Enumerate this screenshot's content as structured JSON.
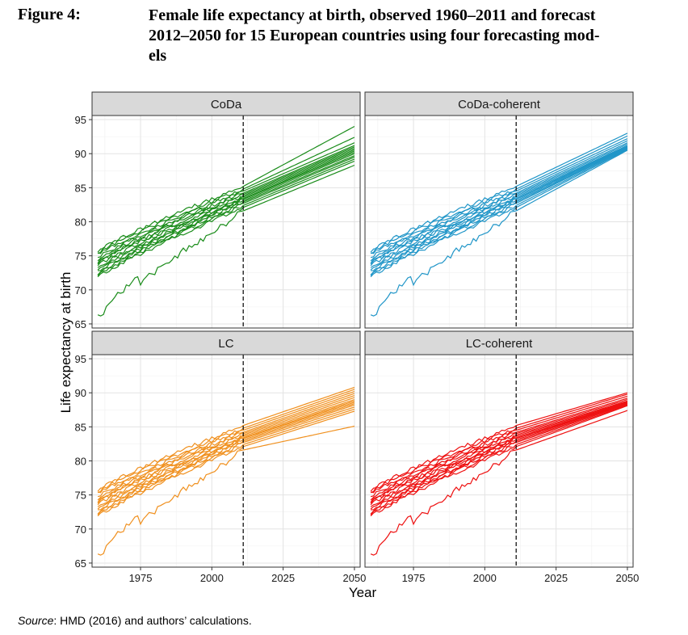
{
  "figure": {
    "label": "Figure 4:",
    "title_lines": [
      "Female life expectancy at birth, observed 1960–2011 and forecast",
      "2012–2050 for 15 European countries using four forecasting mod-",
      "els"
    ]
  },
  "source": {
    "label": "Source",
    "text": ": HMD (2016) and authors’ calculations."
  },
  "chart_data": {
    "type": "line",
    "xlabel": "Year",
    "ylabel": "Life expectancy at birth",
    "xlim": [
      1960,
      2050
    ],
    "ylim": [
      65,
      95
    ],
    "x_ticks": [
      1975,
      2000,
      2025,
      2050
    ],
    "y_ticks": [
      65,
      70,
      75,
      80,
      85,
      90,
      95
    ],
    "grid": true,
    "legend": "none",
    "forecast_start_line": 2011,
    "observed_period": [
      1960,
      2011
    ],
    "forecast_period": [
      2012,
      2050
    ],
    "countries_count": 15,
    "observed_series": {
      "start_1960": [
        65.9,
        71.9,
        72.1,
        72.4,
        72.6,
        73.0,
        73.3,
        73.6,
        73.9,
        74.2,
        74.5,
        74.8,
        75.2,
        75.5,
        75.8
      ],
      "end_2011": [
        81.6,
        82.1,
        82.4,
        82.7,
        82.9,
        83.1,
        83.3,
        83.4,
        83.6,
        83.8,
        84.0,
        84.2,
        84.5,
        84.8,
        85.2
      ]
    },
    "panels": [
      {
        "name": "CoDa",
        "color": "#1a8c1a",
        "end_2050": [
          88.3,
          88.9,
          89.2,
          89.5,
          89.7,
          90.0,
          90.2,
          90.4,
          90.6,
          90.8,
          91.0,
          91.2,
          91.6,
          92.4,
          94.0
        ]
      },
      {
        "name": "CoDa-coherent",
        "color": "#2196c8",
        "end_2050": [
          90.5,
          90.6,
          90.7,
          90.8,
          90.8,
          90.9,
          91.0,
          91.1,
          91.2,
          91.4,
          91.6,
          91.9,
          92.2,
          92.6,
          93.0
        ]
      },
      {
        "name": "LC",
        "color": "#f0901e",
        "end_2050": [
          85.1,
          87.3,
          87.6,
          87.9,
          88.2,
          88.4,
          88.6,
          88.8,
          89.0,
          89.3,
          89.6,
          89.9,
          90.2,
          90.5,
          90.8
        ]
      },
      {
        "name": "LC-coherent",
        "color": "#ee1111",
        "end_2050": [
          87.4,
          88.1,
          88.2,
          88.3,
          88.4,
          88.5,
          88.5,
          88.6,
          88.7,
          88.8,
          89.0,
          89.2,
          89.5,
          89.8,
          90.0
        ]
      }
    ]
  }
}
